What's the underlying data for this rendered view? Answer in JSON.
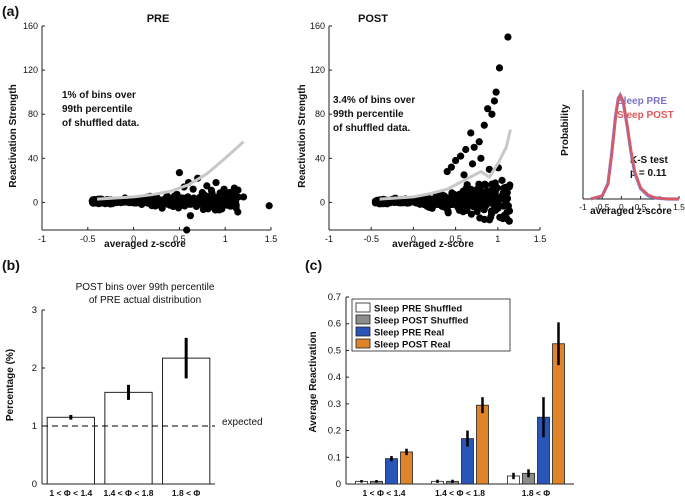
{
  "panel_labels": {
    "a": "(a)",
    "b": "(b)",
    "c": "(c)"
  },
  "chart_data": [
    {
      "id": "scatter-pre",
      "type": "scatter",
      "title": "PRE",
      "xlabel": "averaged z-score",
      "ylabel": "Reactivation Strength",
      "xlim": [
        -1,
        1.5
      ],
      "ylim": [
        -25,
        160
      ],
      "xticks": [
        "-1",
        "-0.5",
        "0",
        "0.5",
        "1",
        "1.5"
      ],
      "yticks": [
        "0",
        "40",
        "80",
        "120",
        "160"
      ],
      "annotation": [
        "1% of bins over",
        "99th percentile",
        "of shuffled data."
      ],
      "threshold_curve": {
        "x": [
          -0.4,
          -0.2,
          0,
          0.2,
          0.4,
          0.6,
          0.8,
          1.0,
          1.2
        ],
        "y": [
          3,
          4,
          5,
          7,
          10,
          16,
          26,
          40,
          55
        ]
      },
      "outliers": {
        "x": [
          0.5,
          0.55,
          0.6,
          0.65,
          0.7,
          0.75,
          0.8,
          0.85,
          0.9,
          1.0,
          1.1,
          1.2,
          1.48,
          0.58,
          0.62
        ],
        "y": [
          27,
          14,
          18,
          12,
          22,
          9,
          15,
          11,
          18,
          7,
          13,
          5,
          -3,
          -25,
          -12
        ]
      }
    },
    {
      "id": "scatter-post",
      "type": "scatter",
      "title": "POST",
      "xlabel": "averaged z-score",
      "ylabel": "Reactivation Strength",
      "xlim": [
        -1,
        1.5
      ],
      "ylim": [
        -25,
        160
      ],
      "xticks": [
        "-1",
        "-0.5",
        "0",
        "0.5",
        "1",
        "1.5"
      ],
      "yticks": [
        "0",
        "40",
        "80",
        "120",
        "160"
      ],
      "annotation": [
        "3.4% of bins over",
        "99th percentile",
        "of shuffled data."
      ],
      "threshold_curve": {
        "x": [
          -0.4,
          -0.2,
          0,
          0.2,
          0.4,
          0.6,
          0.8,
          0.9,
          1.0,
          1.1,
          1.15
        ],
        "y": [
          3,
          4,
          5,
          8,
          12,
          20,
          28,
          23,
          35,
          50,
          66
        ]
      },
      "outliers": {
        "x": [
          1.12,
          1.02,
          0.98,
          0.96,
          0.88,
          0.93,
          0.84,
          0.78,
          0.72,
          0.68,
          0.62,
          0.56,
          0.5,
          0.45,
          0.4,
          0.8,
          0.9,
          1.05,
          1.1,
          0.7,
          0.6
        ],
        "y": [
          150,
          122,
          100,
          92,
          85,
          80,
          70,
          55,
          50,
          63,
          48,
          42,
          38,
          32,
          28,
          40,
          30,
          20,
          12,
          35,
          25
        ]
      }
    },
    {
      "id": "kde-inset",
      "type": "line",
      "xlabel": "averaged z-score",
      "ylabel": "Probability",
      "xlim": [
        -1,
        1.5
      ],
      "xticks": [
        "-1",
        "-0.5",
        "0",
        "0.5",
        "1",
        "1.5"
      ],
      "legend": [
        "Sleep PRE",
        "Sleep POST"
      ],
      "stat_text": [
        "K-S test",
        "p = 0.11"
      ],
      "series": [
        {
          "name": "Sleep PRE",
          "color": "#7b73c8",
          "x": [
            -0.8,
            -0.5,
            -0.35,
            -0.25,
            -0.15,
            -0.08,
            -0.03,
            0.05,
            0.15,
            0.25,
            0.35,
            0.5,
            0.7,
            0.9,
            1.2,
            1.5
          ],
          "y": [
            0,
            0.03,
            0.15,
            0.45,
            0.8,
            0.97,
            1.0,
            0.93,
            0.7,
            0.45,
            0.25,
            0.1,
            0.03,
            0.01,
            0,
            0
          ]
        },
        {
          "name": "Sleep POST",
          "color": "#e0575c",
          "x": [
            -0.8,
            -0.5,
            -0.35,
            -0.25,
            -0.15,
            -0.08,
            -0.02,
            0.05,
            0.15,
            0.25,
            0.35,
            0.5,
            0.7,
            0.9,
            1.2,
            1.5
          ],
          "y": [
            0,
            0.03,
            0.14,
            0.42,
            0.78,
            0.96,
            1.0,
            0.94,
            0.72,
            0.47,
            0.27,
            0.11,
            0.04,
            0.01,
            0,
            0
          ]
        }
      ]
    },
    {
      "id": "bar-b",
      "type": "bar",
      "title": [
        "POST bins over 99th percentile",
        "of PRE actual distribution"
      ],
      "ylabel": "Percentage (%)",
      "categories": [
        "1 < Φ < 1.4",
        "1.4 < Φ < 1.8",
        "1.8 < Φ"
      ],
      "values": [
        1.15,
        1.58,
        2.17
      ],
      "errors": [
        0.04,
        0.13,
        0.35
      ],
      "ylim": [
        0,
        3
      ],
      "yticks": [
        "0",
        "1",
        "2",
        "3"
      ],
      "reference_line": {
        "value": 1,
        "label": "expected"
      }
    },
    {
      "id": "bar-c",
      "type": "bar",
      "ylabel": "Average Reactivation",
      "categories": [
        "1 < Φ < 1.4",
        "1.4 < Φ < 1.8",
        "1.8 < Φ"
      ],
      "ylim": [
        0,
        0.7
      ],
      "yticks": [
        "0",
        "0.1",
        "0.2",
        "0.3",
        "0.4",
        "0.5",
        "0.6",
        "0.7"
      ],
      "series": [
        {
          "name": "Sleep PRE Shuffled",
          "color": "#ffffff",
          "values": [
            0.01,
            0.01,
            0.03
          ],
          "errors": [
            0.005,
            0.006,
            0.012
          ]
        },
        {
          "name": "Sleep POST Shuffled",
          "color": "#8c8c8c",
          "values": [
            0.01,
            0.01,
            0.04
          ],
          "errors": [
            0.005,
            0.006,
            0.015
          ]
        },
        {
          "name": "Sleep PRE Real",
          "color": "#2a55b8",
          "values": [
            0.095,
            0.17,
            0.25
          ],
          "errors": [
            0.01,
            0.03,
            0.075
          ]
        },
        {
          "name": "Sleep POST Real",
          "color": "#e0842a",
          "values": [
            0.12,
            0.295,
            0.525
          ],
          "errors": [
            0.012,
            0.03,
            0.08
          ]
        }
      ]
    }
  ]
}
